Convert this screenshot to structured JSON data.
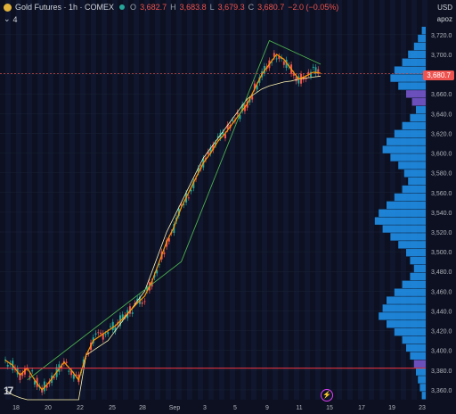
{
  "legend": {
    "symbol": "Gold Futures · 1h · COMEX",
    "o_label": "O",
    "o": "3,682.7",
    "h_label": "H",
    "h": "3,683.8",
    "l_label": "L",
    "l": "3,679.3",
    "c_label": "C",
    "c": "3,680.7",
    "change": "−2.0 (−0.05%)",
    "indicator_count": "4"
  },
  "axis": {
    "currency": "USD",
    "indicator_name": "apoz",
    "current_price_tag": "3,680.7"
  },
  "colors": {
    "background": "#0c1020",
    "up": "#26a69a",
    "down": "#ef5350",
    "ma_orange": "#ff9800",
    "band": "#fff3b0",
    "trendline": "#4caf50",
    "volume_profile": "#2196f3",
    "level_line": "#f23645"
  },
  "chart_data": {
    "type": "line",
    "title": "Gold Futures · 1h · COMEX",
    "x_tick_labels": [
      "18",
      "20",
      "22",
      "25",
      "28",
      "Sep",
      "3",
      "5",
      "9",
      "11",
      "15",
      "17",
      "19",
      "23"
    ],
    "y_tick_labels": [
      "3,720.0",
      "3,700.0",
      "3,680.0",
      "3,660.0",
      "3,640.0",
      "3,620.0",
      "3,600.0",
      "3,580.0",
      "3,560.0",
      "3,540.0",
      "3,520.0",
      "3,500.0",
      "3,480.0",
      "3,460.0",
      "3,440.0",
      "3,420.0",
      "3,400.0",
      "3,380.0",
      "3,360.0"
    ],
    "ylim": [
      3350,
      3728
    ],
    "series": [
      {
        "values": [
          3390,
          3385,
          3375,
          3382,
          3370,
          3360,
          3368,
          3378,
          3388,
          3380,
          3370,
          3395,
          3410,
          3415,
          3420,
          3425,
          3432,
          3440,
          3448,
          3455,
          3470,
          3490,
          3510,
          3525,
          3545,
          3560,
          3575,
          3590,
          3600,
          3612,
          3620,
          3630,
          3640,
          3650,
          3665,
          3680,
          3690,
          3700,
          3695,
          3685,
          3675,
          3678,
          3682,
          3681
        ]
      },
      {
        "values": [
          3360,
          3355,
          3352,
          3350,
          3350,
          3350,
          3350,
          3350,
          3350,
          3350,
          3350,
          3395,
          3400,
          3405,
          3410,
          3420,
          3430,
          3440,
          3450,
          3460,
          3480,
          3500,
          3520,
          3535,
          3550,
          3565,
          3580,
          3595,
          3605,
          3615,
          3625,
          3635,
          3645,
          3655,
          3660,
          3665,
          3668,
          3670,
          3672,
          3673,
          3675,
          3676,
          3677,
          3678
        ]
      }
    ],
    "trendline": [
      [
        3,
        3370
      ],
      [
        24,
        3490
      ],
      [
        36,
        3714
      ],
      [
        43,
        3690
      ]
    ],
    "horizontal_level": 3382,
    "current_price": 3680.7,
    "volume_profile": [
      2,
      4,
      6,
      9,
      12,
      16,
      18,
      14,
      10,
      7,
      5,
      8,
      12,
      16,
      20,
      22,
      18,
      14,
      11,
      9,
      12,
      16,
      20,
      24,
      26,
      22,
      18,
      14,
      10,
      8,
      6,
      8,
      12,
      16,
      20,
      22,
      24,
      20,
      16,
      12,
      10,
      8,
      6,
      5,
      4,
      3,
      2
    ]
  },
  "tv_logo": "17",
  "flash_icon_name": "lightning-icon"
}
